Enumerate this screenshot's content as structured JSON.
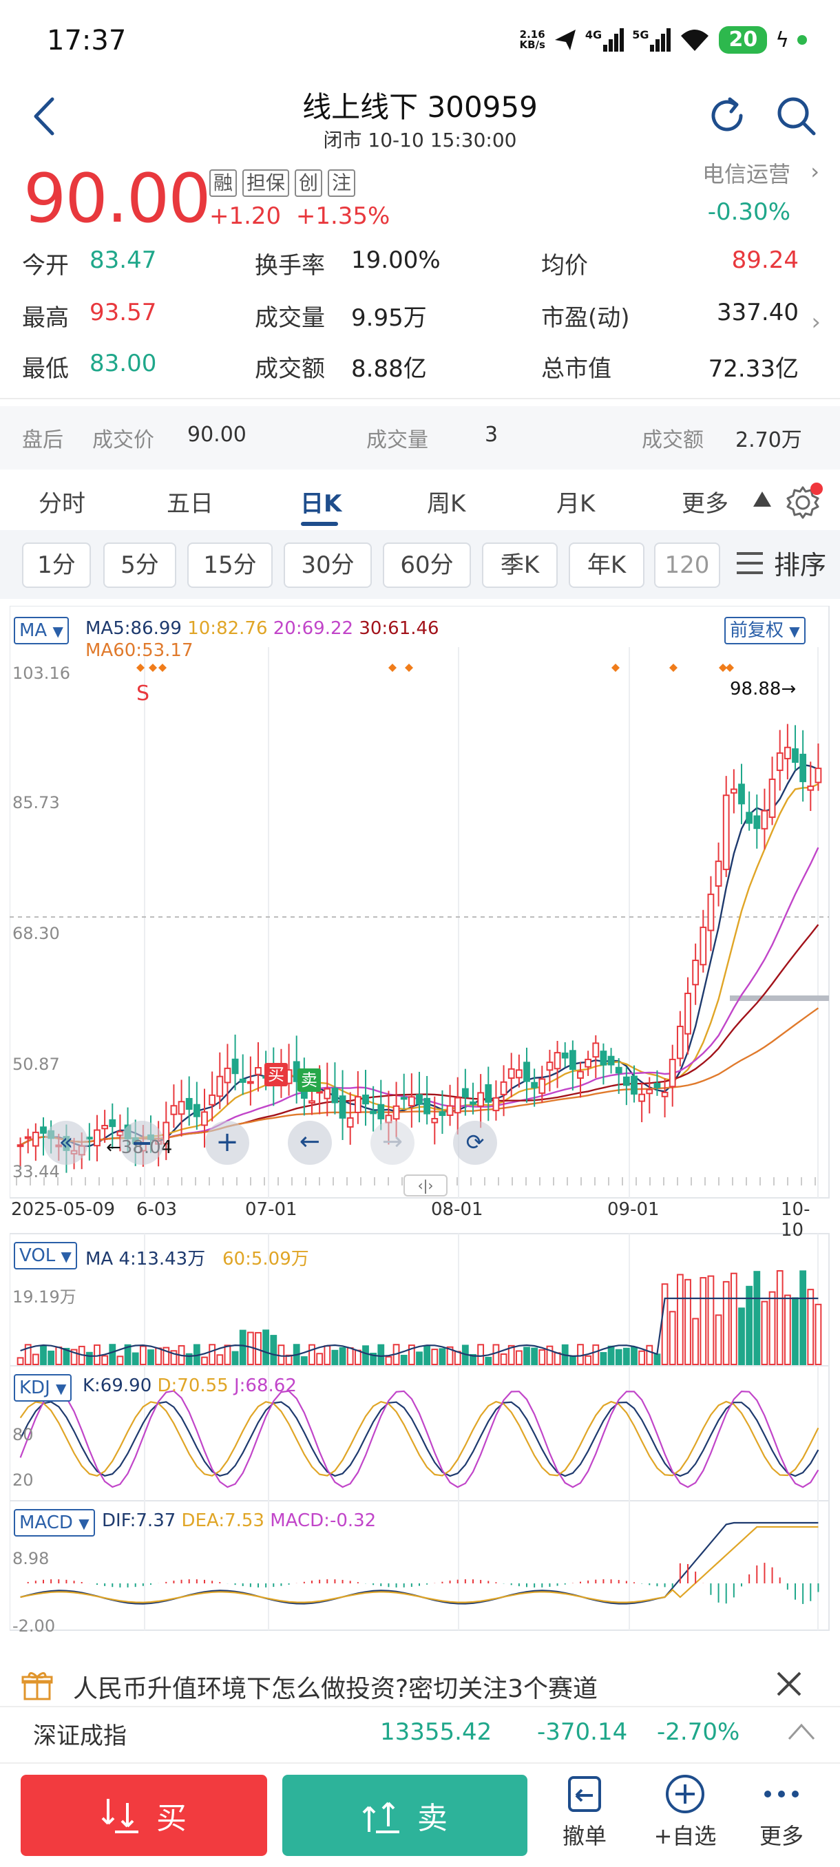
{
  "status": {
    "time": "17:37",
    "net_speed_value": "2.16",
    "net_speed_unit": "KB/s",
    "signal_1": "4G",
    "signal_2": "5G",
    "battery": "20"
  },
  "header": {
    "title": "线上线下 300959",
    "subtitle": "闭市 10-10 15:30:00"
  },
  "quote": {
    "price": "90.00",
    "tags": [
      "融",
      "担保",
      "创",
      "注"
    ],
    "change": "+1.20",
    "change_pct": "+1.35%",
    "sector_name": "电信运营",
    "sector_pct": "-0.30%"
  },
  "stats": {
    "open_label": "今开",
    "open": "83.47",
    "high_label": "最高",
    "high": "93.57",
    "low_label": "最低",
    "low": "83.00",
    "turnover_label": "换手率",
    "turnover": "19.00%",
    "volume_label": "成交量",
    "volume": "9.95万",
    "amount_label": "成交额",
    "amount": "8.88亿",
    "avg_label": "均价",
    "avg": "89.24",
    "pe_label": "市盈(动)",
    "pe": "337.40",
    "mcap_label": "总市值",
    "mcap": "72.33亿"
  },
  "afterhours": {
    "label": "盘后",
    "price_label": "成交价",
    "price": "90.00",
    "vol_label": "成交量",
    "vol": "3",
    "amt_label": "成交额",
    "amt": "2.70万"
  },
  "period_tabs": [
    "分时",
    "五日",
    "日K",
    "周K",
    "月K",
    "更多"
  ],
  "sub_tabs": [
    "1分",
    "5分",
    "15分",
    "30分",
    "60分",
    "季K",
    "年K",
    "120"
  ],
  "sort_label": "排序",
  "kchart": {
    "indicator": "MA",
    "ma5": "MA5:86.99",
    "ma10": "10:82.76",
    "ma20": "20:69.22",
    "ma30": "30:61.46",
    "ma60": "MA60:53.17",
    "adjust": "前复权",
    "y_labels": [
      "103.16",
      "85.73",
      "68.30",
      "50.87",
      "33.44"
    ],
    "high_mark": "98.88",
    "low_mark": "38.04",
    "s_mark": "S",
    "buy_mark": "买",
    "sell_mark": "卖",
    "dates": [
      "2025-05-09",
      "6-03",
      "07-01",
      "08-01",
      "09-01",
      "10-10"
    ]
  },
  "vol_panel": {
    "indicator": "VOL",
    "ma4": "MA 4:13.43万",
    "ma60": "60:5.09万",
    "top_label": "19.19万"
  },
  "kdj_panel": {
    "indicator": "KDJ",
    "k": "K:69.90",
    "d": "D:70.55",
    "j": "J:68.62",
    "label_80": "80",
    "label_20": "20"
  },
  "macd_panel": {
    "indicator": "MACD",
    "dif": "DIF:7.37",
    "dea": "DEA:7.53",
    "macd": "MACD:-0.32",
    "top_label": "8.98",
    "bottom_label": "-2.00"
  },
  "news": {
    "text": "人民币升值环境下怎么做投资?密切关注3个赛道"
  },
  "index_bar": {
    "name": "深证成指",
    "value": "13355.42",
    "change": "-370.14",
    "pct": "-2.70%"
  },
  "bottom": {
    "buy": "买",
    "sell": "卖",
    "cancel": "撤单",
    "watch": "+自选",
    "more": "更多"
  },
  "colors": {
    "up": "#e8383d",
    "down": "#1fa78a",
    "ma5": "#1e3a6e",
    "ma10": "#e0a526",
    "ma20": "#c145c9",
    "ma30": "#a2121a",
    "ma60": "#e07a2c"
  }
}
